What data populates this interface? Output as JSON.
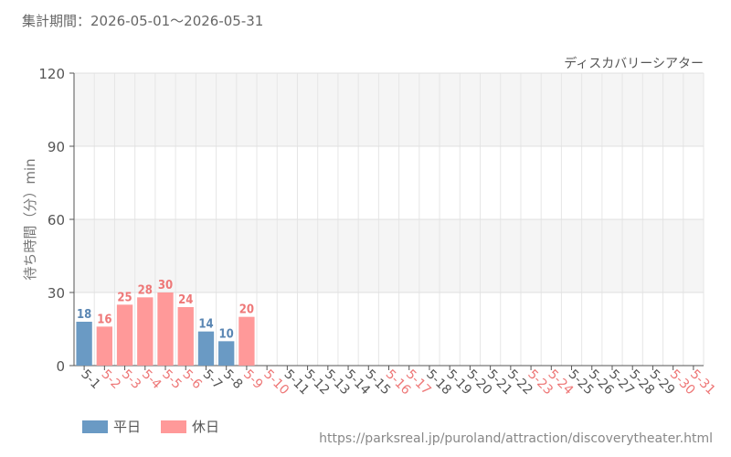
{
  "period_label": "集計期間：2026-05-01～2026-05-31",
  "colors": {
    "weekday": "#6a9ac4",
    "holiday": "#ff9999",
    "weekday_text": "#5a86b3",
    "holiday_text": "#ee7777"
  },
  "legend": {
    "weekday": "平日",
    "holiday": "休日"
  },
  "source_url": "https://parksreal.jp/puroland/attraction/discoverytheater.html",
  "chart_data": {
    "type": "bar",
    "title": "ディスカバリーシアター",
    "ylabel": "待ち時間（分）min",
    "ylim": [
      0,
      120
    ],
    "yticks": [
      0,
      30,
      60,
      90,
      120
    ],
    "grid": true,
    "legend_position": "bottom-left",
    "categories": [
      "5-1",
      "5-2",
      "5-3",
      "5-4",
      "5-5",
      "5-6",
      "5-7",
      "5-8",
      "5-9",
      "5-10",
      "5-11",
      "5-12",
      "5-13",
      "5-14",
      "5-15",
      "5-16",
      "5-17",
      "5-18",
      "5-19",
      "5-20",
      "5-21",
      "5-22",
      "5-23",
      "5-24",
      "5-25",
      "5-26",
      "5-27",
      "5-28",
      "5-29",
      "5-30",
      "5-31"
    ],
    "day_type": [
      "weekday",
      "holiday",
      "holiday",
      "holiday",
      "holiday",
      "holiday",
      "weekday",
      "weekday",
      "holiday",
      "holiday",
      "weekday",
      "weekday",
      "weekday",
      "weekday",
      "weekday",
      "holiday",
      "holiday",
      "weekday",
      "weekday",
      "weekday",
      "weekday",
      "weekday",
      "holiday",
      "holiday",
      "weekday",
      "weekday",
      "weekday",
      "weekday",
      "weekday",
      "holiday",
      "holiday"
    ],
    "values": [
      18,
      16,
      25,
      28,
      30,
      24,
      14,
      10,
      20,
      null,
      null,
      null,
      null,
      null,
      null,
      null,
      null,
      null,
      null,
      null,
      null,
      null,
      null,
      null,
      null,
      null,
      null,
      null,
      null,
      null,
      null
    ]
  }
}
